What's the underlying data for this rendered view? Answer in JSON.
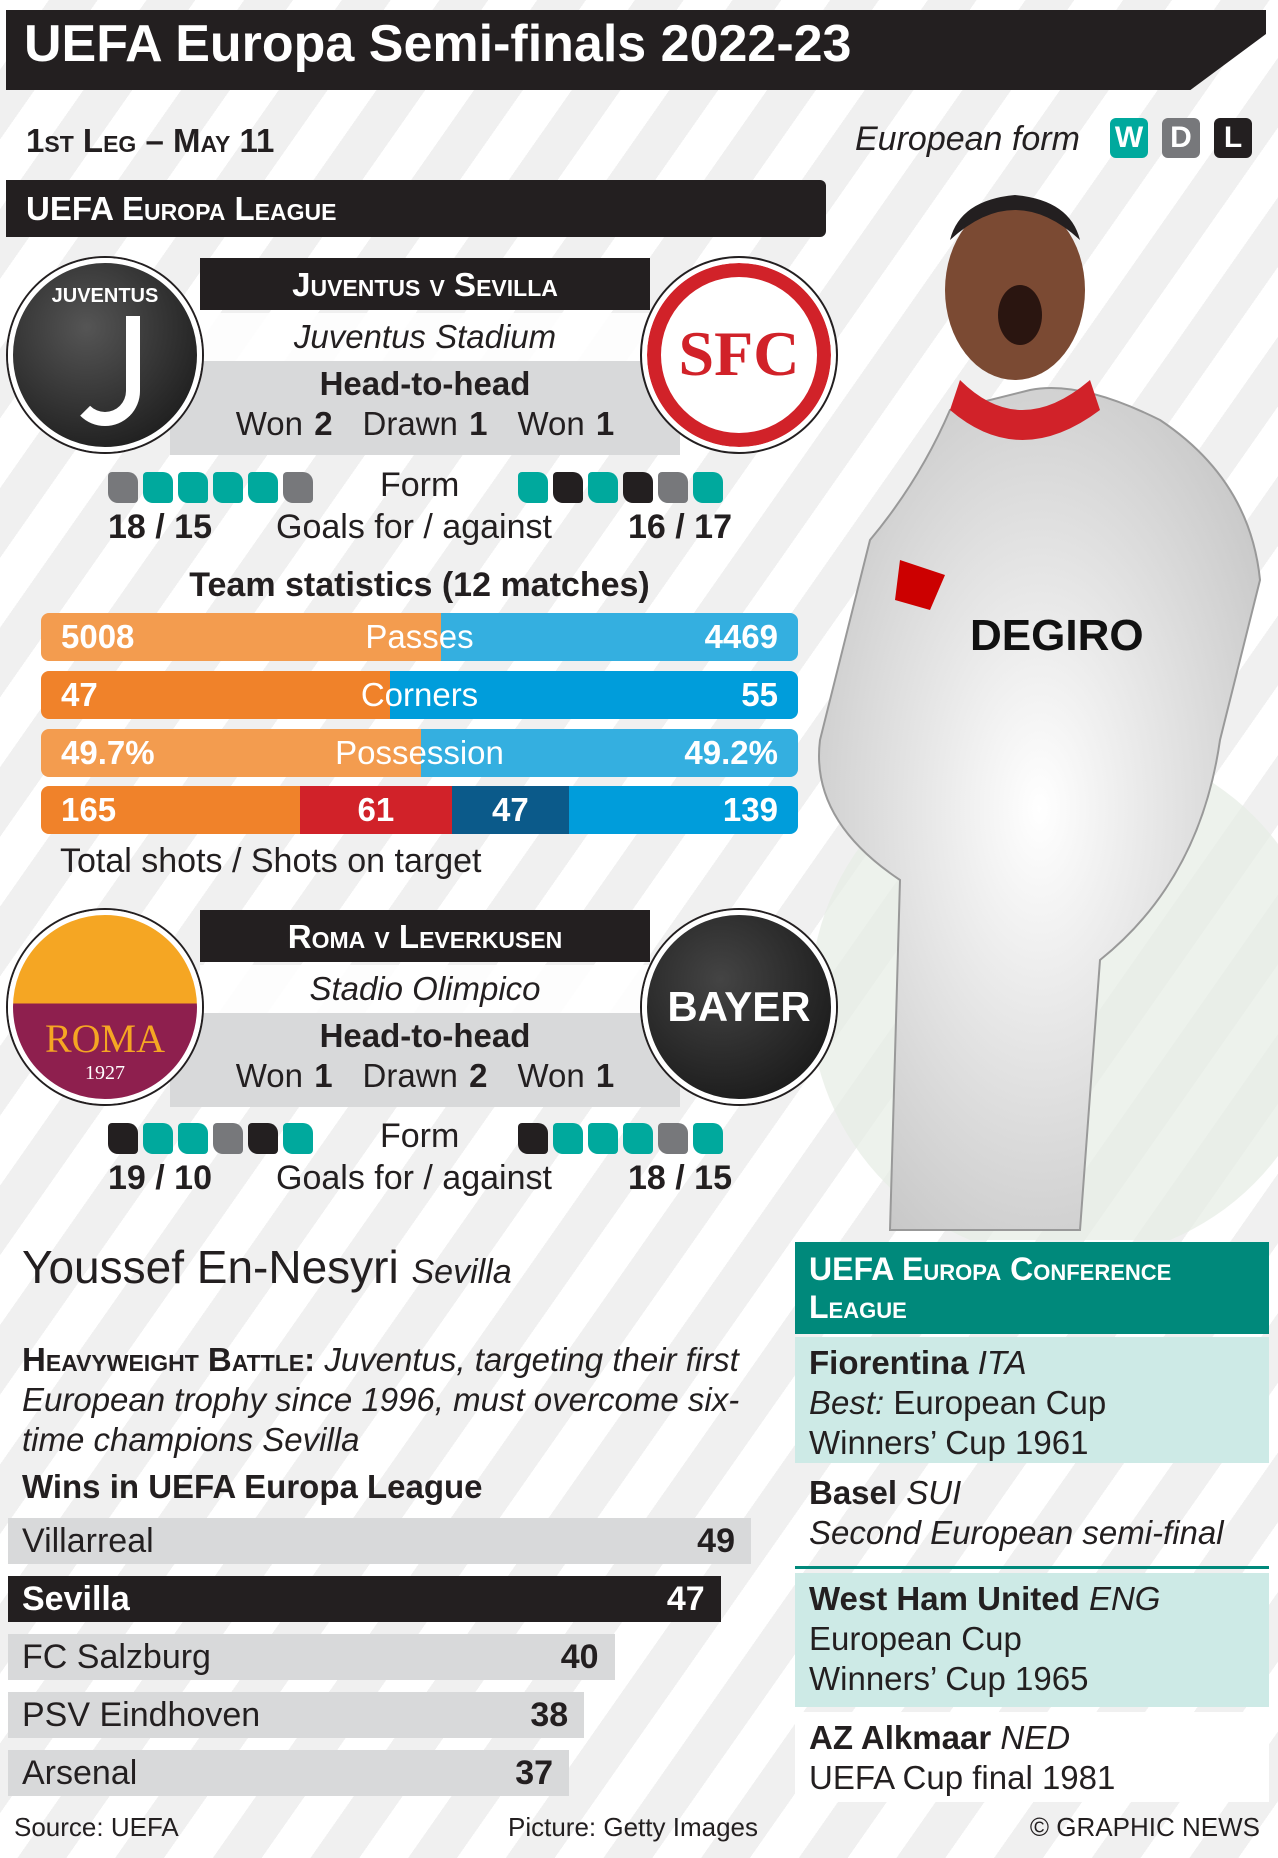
{
  "title": "UEFA Europa Semi-finals 2022-23",
  "leg": "1st Leg – May 11",
  "form_key": {
    "label": "European form",
    "items": [
      {
        "letter": "W",
        "color": "#00a99d"
      },
      {
        "letter": "D",
        "color": "#77787b"
      },
      {
        "letter": "L",
        "color": "#231f20"
      }
    ]
  },
  "league": "UEFA Europa League",
  "matches": [
    {
      "title": "Juventus v Sevilla",
      "venue": "Juventus Stadium",
      "h2h_title": "Head-to-head",
      "won_label": "Won",
      "drawn_label": "Drawn",
      "home_won": "2",
      "drawn": "1",
      "away_won": "1",
      "home_form": [
        "D",
        "W",
        "W",
        "W",
        "W",
        "D"
      ],
      "away_form": [
        "W",
        "L",
        "W",
        "L",
        "D",
        "W"
      ],
      "form_label": "Form",
      "goals_label": "Goals for / against",
      "home_goals": "18 / 15",
      "away_goals": "16 / 17",
      "home_logo_text": "JUVENTUS",
      "away_logo_text": "SFC"
    },
    {
      "title": "Roma v Leverkusen",
      "venue": "Stadio Olimpico",
      "h2h_title": "Head-to-head",
      "won_label": "Won",
      "drawn_label": "Drawn",
      "home_won": "1",
      "drawn": "2",
      "away_won": "1",
      "home_form": [
        "L",
        "W",
        "W",
        "D",
        "L",
        "W"
      ],
      "away_form": [
        "L",
        "W",
        "W",
        "W",
        "D",
        "W"
      ],
      "form_label": "Form",
      "goals_label": "Goals for / against",
      "home_goals": "19 / 10",
      "away_goals": "18 / 15",
      "home_logo_text": "ROMA",
      "home_logo_year": "1927",
      "away_logo_text": "BAYER"
    }
  ],
  "stats": {
    "title": "Team statistics (12 matches)",
    "rows": [
      {
        "label": "Passes",
        "home": "5008",
        "away": "4469",
        "home_val": 5008,
        "away_val": 4469
      },
      {
        "label": "Corners",
        "home": "47",
        "away": "55",
        "home_val": 47,
        "away_val": 55
      },
      {
        "label": "Possession",
        "home": "49.7%",
        "away": "49.2%",
        "home_val": 49.7,
        "away_val": 49.2
      }
    ],
    "shots": {
      "home_total": "165",
      "home_target": "61",
      "away_target": "47",
      "away_total": "139"
    },
    "shots_label": "Total shots / Shots on target",
    "colors": {
      "home": "#f0822a",
      "home_light": "#f39c4f",
      "away": "#009ddb",
      "away_light": "#34afe0",
      "home_target": "#d12229",
      "away_target": "#0b5a8a"
    }
  },
  "player": {
    "name": "Youssef En-Nesyri",
    "club": "Sevilla",
    "shirt_text": "DEGIRO"
  },
  "story": {
    "lead": "Heavyweight Battle:",
    "text": "Juventus, targeting their first European trophy since 1996, must overcome six-time champions Sevilla"
  },
  "wins": {
    "title": "Wins in UEFA Europa League",
    "rows": [
      {
        "team": "Villarreal",
        "value": 49
      },
      {
        "team": "Sevilla",
        "value": 47
      },
      {
        "team": "FC Salzburg",
        "value": 40
      },
      {
        "team": "PSV Eindhoven",
        "value": 38
      },
      {
        "team": "Arsenal",
        "value": 37
      }
    ]
  },
  "conference": {
    "title": "UEFA Europa Conference League",
    "teams": [
      {
        "name": "Fiorentina",
        "country": "ITA",
        "line1_lead": "Best:",
        "line1": "European Cup",
        "line2": "Winners’ Cup 1961"
      },
      {
        "name": "Basel",
        "country": "SUI",
        "line1": "Second European semi-final"
      },
      {
        "name": "West Ham United",
        "country": "ENG",
        "line1": "European Cup",
        "line2": "Winners’ Cup 1965"
      },
      {
        "name": "AZ Alkmaar",
        "country": "NED",
        "line1": "UEFA Cup final 1981"
      }
    ]
  },
  "footer": {
    "source": "Source: UEFA",
    "picture": "Picture: Getty Images",
    "credit": "© GRAPHIC NEWS"
  }
}
